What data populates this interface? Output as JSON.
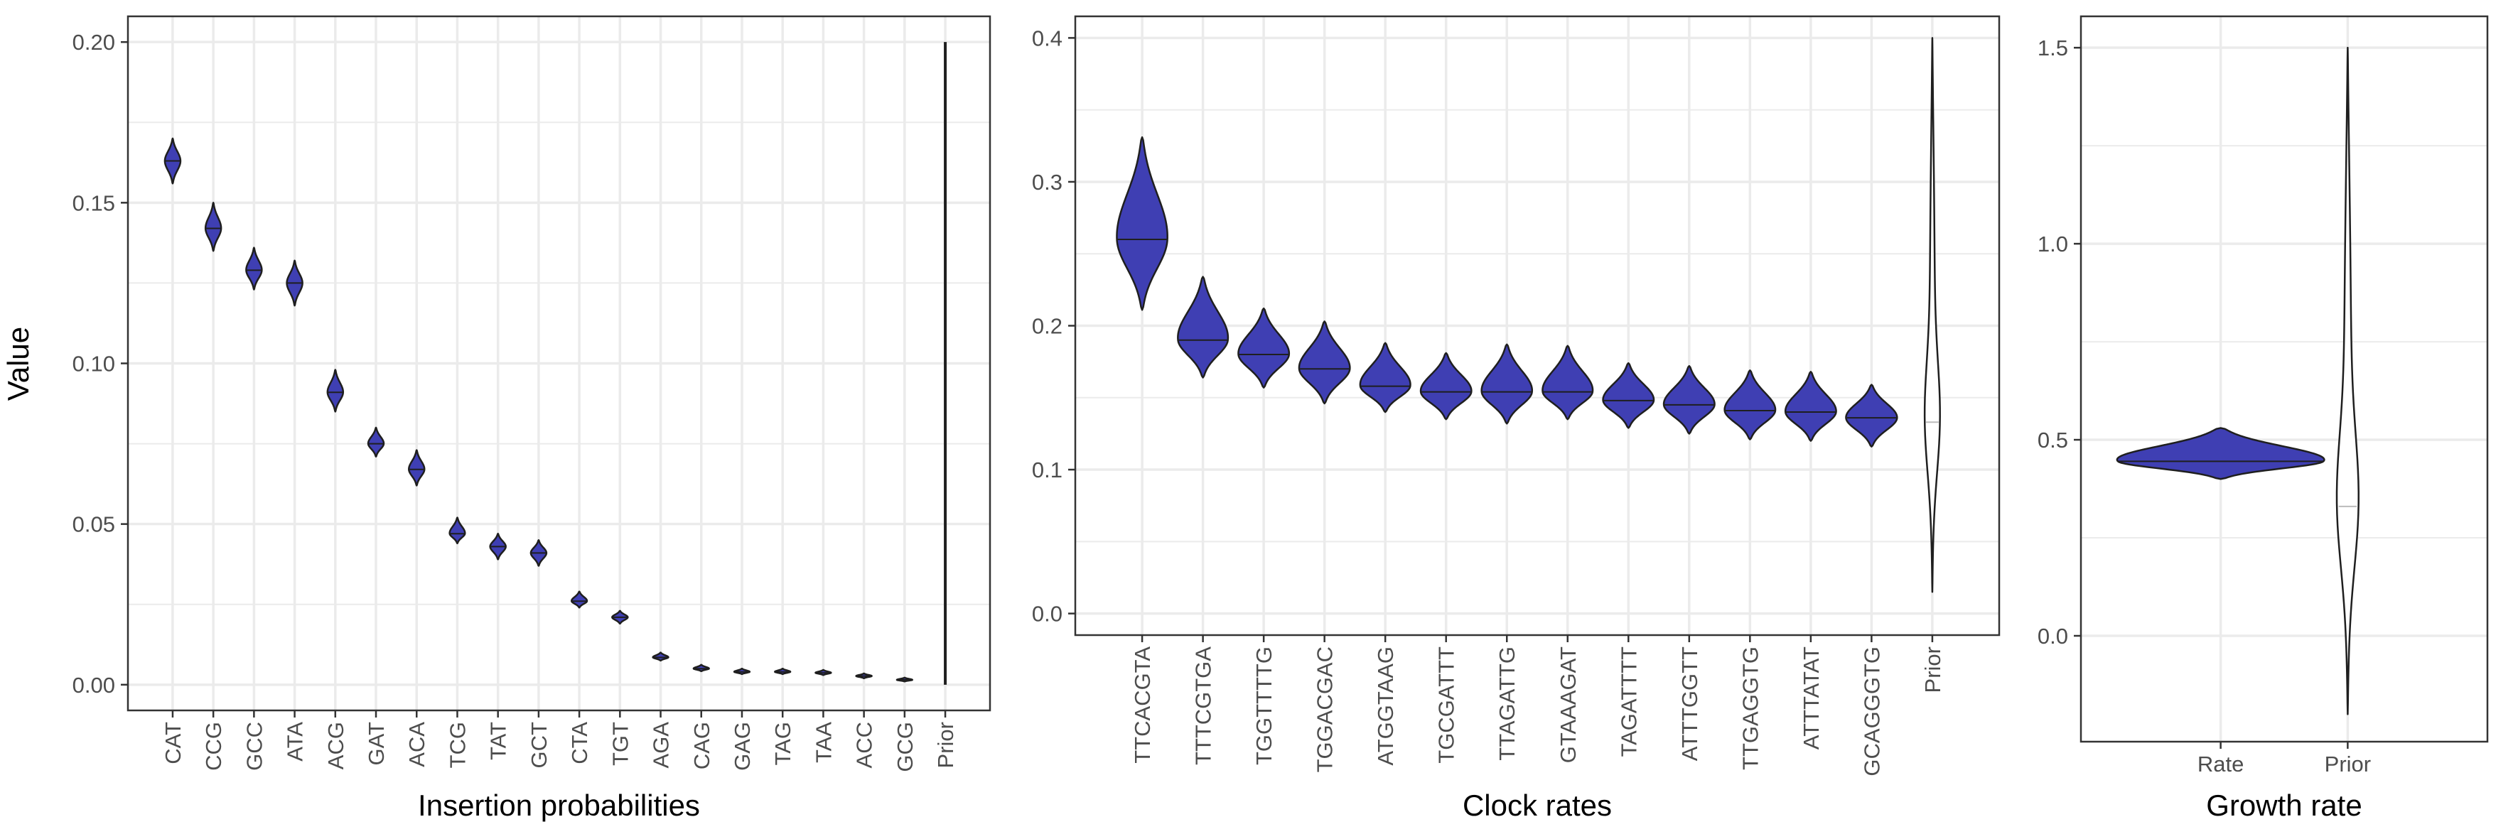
{
  "y_axis_title": "Value",
  "colors": {
    "violin_fill": "#3F3FB3",
    "prior_fill": "#FFFFFF",
    "outline": "#1F1F1F",
    "grid": "#EBEBEB",
    "panel_border": "#333333"
  },
  "chart_data": [
    {
      "type": "violin",
      "xlabel": "Insertion probabilities",
      "ylabel": "Value",
      "ylim": [
        -0.008,
        0.208
      ],
      "yticks": [
        0.0,
        0.05,
        0.1,
        0.15,
        0.2
      ],
      "ytick_labels": [
        "0.00",
        "0.05",
        "0.10",
        "0.15",
        "0.20"
      ],
      "categories": [
        "CAT",
        "CCG",
        "GCC",
        "ATA",
        "ACG",
        "GAT",
        "ACA",
        "TCG",
        "TAT",
        "GCT",
        "CTA",
        "TGT",
        "AGA",
        "CAG",
        "GAG",
        "TAG",
        "TAA",
        "ACC",
        "GCG",
        "Prior"
      ],
      "median": [
        0.163,
        0.142,
        0.129,
        0.125,
        0.091,
        0.075,
        0.067,
        0.047,
        0.043,
        0.041,
        0.026,
        0.021,
        0.0085,
        0.005,
        0.004,
        0.004,
        0.0037,
        0.0027,
        0.0015,
        0.1
      ],
      "min": [
        0.156,
        0.135,
        0.123,
        0.118,
        0.085,
        0.071,
        0.062,
        0.044,
        0.039,
        0.037,
        0.024,
        0.019,
        0.0075,
        0.0042,
        0.0033,
        0.0033,
        0.003,
        0.002,
        0.001,
        0.0
      ],
      "max": [
        0.17,
        0.15,
        0.136,
        0.132,
        0.098,
        0.08,
        0.073,
        0.052,
        0.047,
        0.045,
        0.029,
        0.023,
        0.01,
        0.0062,
        0.005,
        0.005,
        0.0046,
        0.0035,
        0.0022,
        0.2
      ],
      "prior_category": "Prior",
      "grid": true
    },
    {
      "type": "violin",
      "xlabel": "Clock rates",
      "ylim": [
        -0.015,
        0.415
      ],
      "yticks": [
        0.0,
        0.1,
        0.2,
        0.3,
        0.4
      ],
      "ytick_labels": [
        "0.0",
        "0.1",
        "0.2",
        "0.3",
        "0.4"
      ],
      "categories": [
        "TTCACGTA",
        "TTTCGTGA",
        "TGGTTTTG",
        "TGGACGAC",
        "ATGGTAAG",
        "TGCGATTT",
        "TTAGATTG",
        "GTAAAGAT",
        "TAGATTTT",
        "ATTTGGTT",
        "TTGAGGTG",
        "ATTTATAT",
        "GCAGGGTG",
        "Prior"
      ],
      "median": [
        0.26,
        0.19,
        0.18,
        0.17,
        0.158,
        0.154,
        0.154,
        0.154,
        0.148,
        0.145,
        0.141,
        0.14,
        0.136,
        0.133
      ],
      "min": [
        0.211,
        0.164,
        0.157,
        0.146,
        0.14,
        0.135,
        0.132,
        0.135,
        0.129,
        0.125,
        0.121,
        0.12,
        0.116,
        0.015
      ],
      "max": [
        0.331,
        0.234,
        0.212,
        0.203,
        0.188,
        0.181,
        0.187,
        0.186,
        0.174,
        0.172,
        0.169,
        0.168,
        0.159,
        0.4
      ],
      "prior_category": "Prior",
      "grid": true
    },
    {
      "type": "violin",
      "xlabel": "Growth rate",
      "ylim": [
        -0.27,
        1.58
      ],
      "yticks": [
        0.0,
        0.5,
        1.0,
        1.5
      ],
      "ytick_labels": [
        "0.0",
        "0.5",
        "1.0",
        "1.5"
      ],
      "categories": [
        "Rate",
        "Prior"
      ],
      "median": [
        0.445,
        0.33
      ],
      "min": [
        0.4,
        -0.2
      ],
      "max": [
        0.53,
        1.5
      ],
      "prior_category": "Prior",
      "grid": true
    }
  ]
}
